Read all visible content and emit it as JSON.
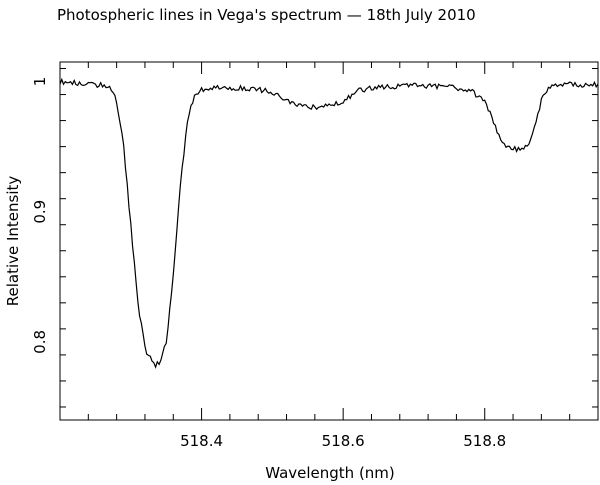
{
  "chart_data": {
    "type": "line",
    "title": "Photospheric lines in Vega's spectrum — 18th July 2010",
    "xlabel": "Wavelength (nm)",
    "ylabel": "Relative Intensity",
    "xlim": [
      518.2,
      518.96
    ],
    "ylim": [
      0.74,
      1.015
    ],
    "x_ticks": [
      518.4,
      518.6,
      518.8
    ],
    "x_tick_labels": [
      "518.4",
      "518.6",
      "518.8"
    ],
    "y_ticks": [
      0.8,
      0.9,
      1.0
    ],
    "y_tick_labels": [
      "0.8",
      "0.9",
      "1"
    ],
    "grid": false,
    "legend": "none",
    "series": [
      {
        "x": [
          518.2,
          518.22,
          518.24,
          518.26,
          518.27,
          518.28,
          518.29,
          518.3,
          518.31,
          518.32,
          518.33,
          518.335,
          518.34,
          518.35,
          518.36,
          518.37,
          518.38,
          518.39,
          518.4,
          518.42,
          518.45,
          518.48,
          518.5,
          518.52,
          518.54,
          518.56,
          518.58,
          518.6,
          518.62,
          518.65,
          518.7,
          518.75,
          518.78,
          518.8,
          518.81,
          518.82,
          518.83,
          518.84,
          518.85,
          518.86,
          518.87,
          518.88,
          518.89,
          518.9,
          518.92,
          518.94,
          518.96
        ],
        "y": [
          1.0,
          0.999,
          0.998,
          0.997,
          0.995,
          0.985,
          0.95,
          0.89,
          0.83,
          0.795,
          0.785,
          0.782,
          0.784,
          0.8,
          0.85,
          0.92,
          0.97,
          0.99,
          0.994,
          0.995,
          0.995,
          0.994,
          0.992,
          0.985,
          0.982,
          0.98,
          0.981,
          0.985,
          0.993,
          0.996,
          0.997,
          0.996,
          0.993,
          0.985,
          0.972,
          0.958,
          0.95,
          0.948,
          0.948,
          0.95,
          0.965,
          0.985,
          0.995,
          0.998,
          0.998,
          0.997,
          0.998
        ]
      }
    ]
  }
}
